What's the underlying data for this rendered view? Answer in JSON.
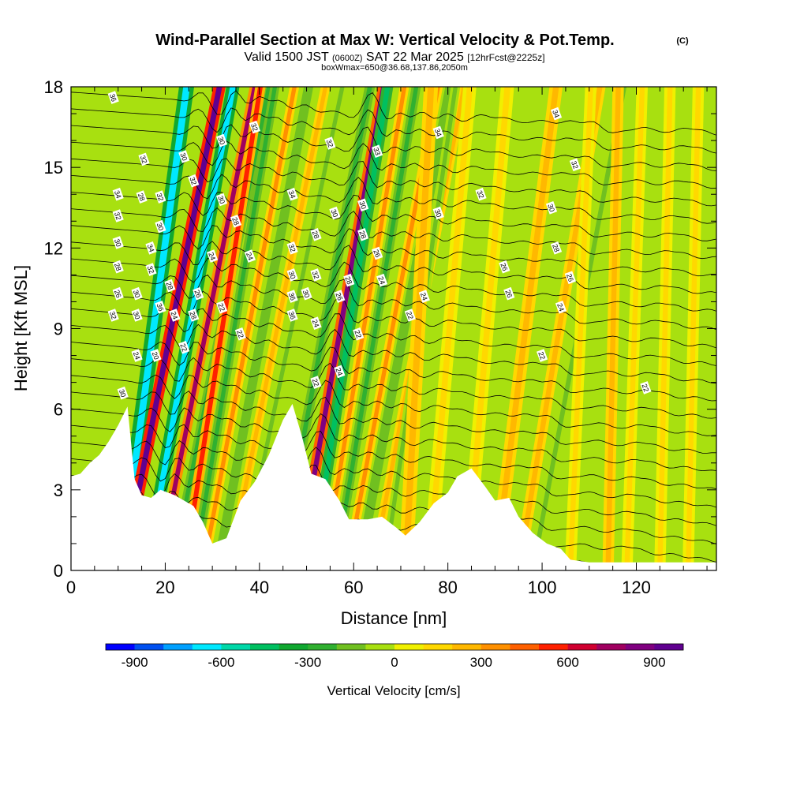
{
  "chart_data": {
    "type": "heatmap",
    "title": "Wind-Parallel Section at Max W: Vertical Velocity & Pot.Temp.",
    "title_mark": "(C)",
    "subtitle": {
      "prefix": "Valid 1500 JST",
      "utc": "(0600Z)",
      "date": "SAT 22 Mar 2025",
      "run": "[12hrFcst@2225z]"
    },
    "subtitle2": "boxWmax=650@36.68,137.86,2050m",
    "xlabel": "Distance [nm]",
    "ylabel": "Height [Kft MSL]",
    "xlim": [
      0,
      137
    ],
    "ylim": [
      0,
      18
    ],
    "xticks": [
      0,
      20,
      40,
      60,
      80,
      100,
      120
    ],
    "yticks": [
      0,
      3,
      6,
      9,
      12,
      15,
      18
    ],
    "colorbar": {
      "label": "Vertical Velocity [cm/s]",
      "range": [
        -1000,
        1000
      ],
      "ticks": [
        -900,
        -600,
        -300,
        0,
        300,
        600,
        900
      ],
      "colors": [
        "#0000ff",
        "#0050f0",
        "#00a0ff",
        "#00e8ff",
        "#00d8a8",
        "#00c060",
        "#10a830",
        "#30b030",
        "#70c020",
        "#a8e010",
        "#f0f000",
        "#ffd800",
        "#ffb800",
        "#ff9000",
        "#ff6000",
        "#ff2000",
        "#d00030",
        "#a00060",
        "#800080",
        "#600090"
      ]
    },
    "plumes": [
      {
        "x0": 10.5,
        "lean": 0.13,
        "half_width": 1.6,
        "w": -700
      },
      {
        "x0": 11.0,
        "lean": 0.19,
        "half_width": 1.3,
        "w": 950
      },
      {
        "x0": 16.0,
        "lean": 0.17,
        "half_width": 1.4,
        "w": -650
      },
      {
        "x0": 18.5,
        "lean": 0.19,
        "half_width": 1.1,
        "w": 700
      },
      {
        "x0": 21.5,
        "lean": 0.19,
        "half_width": 1.0,
        "w": -300
      },
      {
        "x0": 24.0,
        "lean": 0.15,
        "half_width": 1.1,
        "w": 500
      },
      {
        "x0": 26.0,
        "lean": 0.16,
        "half_width": 1.0,
        "w": -250
      },
      {
        "x0": 28.0,
        "lean": 0.18,
        "half_width": 1.0,
        "w": 350
      },
      {
        "x0": 31.0,
        "lean": 0.18,
        "half_width": 1.0,
        "w": -200
      },
      {
        "x0": 33.5,
        "lean": 0.19,
        "half_width": 1.0,
        "w": 250
      },
      {
        "x0": 36.0,
        "lean": 0.2,
        "half_width": 1.0,
        "w": -150
      },
      {
        "x0": 44.0,
        "lean": 0.18,
        "half_width": 1.1,
        "w": -250
      },
      {
        "x0": 48.0,
        "lean": 0.17,
        "half_width": 1.2,
        "w": 800
      },
      {
        "x0": 51.0,
        "lean": 0.15,
        "half_width": 1.2,
        "w": -450
      },
      {
        "x0": 53.5,
        "lean": 0.16,
        "half_width": 1.0,
        "w": 300
      },
      {
        "x0": 56.0,
        "lean": 0.16,
        "half_width": 1.0,
        "w": -250
      },
      {
        "x0": 58.5,
        "lean": 0.18,
        "half_width": 1.0,
        "w": 300
      },
      {
        "x0": 61.0,
        "lean": 0.18,
        "half_width": 1.0,
        "w": -200
      },
      {
        "x0": 64.0,
        "lean": 0.18,
        "half_width": 1.0,
        "w": 250
      },
      {
        "x0": 66.5,
        "lean": 0.14,
        "half_width": 1.0,
        "w": -150
      },
      {
        "x0": 71.0,
        "lean": 0.05,
        "half_width": 1.5,
        "w": 200
      },
      {
        "x0": 76.0,
        "lean": 0.08,
        "half_width": 1.4,
        "w": 150
      },
      {
        "x0": 84.0,
        "lean": 0.08,
        "half_width": 1.4,
        "w": 150
      },
      {
        "x0": 90.0,
        "lean": 0.12,
        "half_width": 1.4,
        "w": 200
      },
      {
        "x0": 95.0,
        "lean": 0.16,
        "half_width": 1.2,
        "w": 250
      },
      {
        "x0": 98.0,
        "lean": 0.18,
        "half_width": 1.1,
        "w": -150
      },
      {
        "x0": 106.0,
        "lean": 0.04,
        "half_width": 1.2,
        "w": 150
      },
      {
        "x0": 114.0,
        "lean": 0.02,
        "half_width": 1.2,
        "w": 200
      },
      {
        "x0": 118.0,
        "lean": 0.03,
        "half_width": 1.2,
        "w": 180
      },
      {
        "x0": 125.0,
        "lean": 0.02,
        "half_width": 1.2,
        "w": 150
      },
      {
        "x0": 131.0,
        "lean": 0.02,
        "half_width": 1.2,
        "w": 120
      }
    ],
    "terrain": [
      [
        0,
        3.5
      ],
      [
        2,
        3.6
      ],
      [
        4,
        4.0
      ],
      [
        6,
        4.3
      ],
      [
        8,
        4.8
      ],
      [
        10,
        5.4
      ],
      [
        12,
        6.1
      ],
      [
        13.5,
        3.4
      ],
      [
        15,
        2.8
      ],
      [
        17,
        2.7
      ],
      [
        19,
        3.0
      ],
      [
        22,
        2.8
      ],
      [
        26,
        2.4
      ],
      [
        28,
        1.8
      ],
      [
        30,
        1.0
      ],
      [
        33,
        1.2
      ],
      [
        36,
        2.6
      ],
      [
        39,
        3.3
      ],
      [
        42,
        4.3
      ],
      [
        45,
        5.6
      ],
      [
        47,
        6.2
      ],
      [
        49,
        5.0
      ],
      [
        51,
        3.6
      ],
      [
        54,
        3.4
      ],
      [
        57,
        2.6
      ],
      [
        59,
        1.9
      ],
      [
        63,
        1.9
      ],
      [
        66,
        2.0
      ],
      [
        69,
        1.6
      ],
      [
        71,
        1.3
      ],
      [
        74,
        1.8
      ],
      [
        77,
        2.5
      ],
      [
        80,
        2.9
      ],
      [
        82,
        3.5
      ],
      [
        85,
        3.8
      ],
      [
        88,
        3.1
      ],
      [
        90,
        2.6
      ],
      [
        93,
        2.7
      ],
      [
        95,
        2.0
      ],
      [
        98,
        1.4
      ],
      [
        101,
        1.0
      ],
      [
        104,
        0.8
      ],
      [
        106,
        0.4
      ],
      [
        110,
        0.3
      ],
      [
        137,
        0.3
      ]
    ],
    "theta_levels": [
      22,
      24,
      26,
      28,
      30,
      32,
      34,
      36
    ],
    "contour_labels": [
      {
        "x": 9,
        "y": 17.6,
        "text": "36"
      },
      {
        "x": 15.5,
        "y": 15.3,
        "text": "32"
      },
      {
        "x": 10,
        "y": 14.0,
        "text": "34"
      },
      {
        "x": 10,
        "y": 13.2,
        "text": "32"
      },
      {
        "x": 10,
        "y": 12.2,
        "text": "30"
      },
      {
        "x": 10,
        "y": 11.3,
        "text": "28"
      },
      {
        "x": 10,
        "y": 10.3,
        "text": "26"
      },
      {
        "x": 9,
        "y": 9.5,
        "text": "32"
      },
      {
        "x": 11,
        "y": 6.6,
        "text": "30"
      },
      {
        "x": 15,
        "y": 13.9,
        "text": "28"
      },
      {
        "x": 19,
        "y": 13.9,
        "text": "32"
      },
      {
        "x": 19,
        "y": 12.8,
        "text": "30"
      },
      {
        "x": 17,
        "y": 12.0,
        "text": "34"
      },
      {
        "x": 17,
        "y": 11.2,
        "text": "32"
      },
      {
        "x": 14,
        "y": 10.3,
        "text": "30"
      },
      {
        "x": 14,
        "y": 9.5,
        "text": "30"
      },
      {
        "x": 19,
        "y": 9.8,
        "text": "36"
      },
      {
        "x": 21,
        "y": 10.6,
        "text": "28"
      },
      {
        "x": 22,
        "y": 9.5,
        "text": "24"
      },
      {
        "x": 14,
        "y": 8.0,
        "text": "24"
      },
      {
        "x": 18,
        "y": 8.0,
        "text": "20"
      },
      {
        "x": 24,
        "y": 8.3,
        "text": "22"
      },
      {
        "x": 24,
        "y": 15.4,
        "text": "30"
      },
      {
        "x": 26,
        "y": 14.5,
        "text": "32"
      },
      {
        "x": 32,
        "y": 16.0,
        "text": "30"
      },
      {
        "x": 39,
        "y": 16.5,
        "text": "32"
      },
      {
        "x": 32,
        "y": 13.8,
        "text": "30"
      },
      {
        "x": 35,
        "y": 13.0,
        "text": "28"
      },
      {
        "x": 30,
        "y": 11.7,
        "text": "24"
      },
      {
        "x": 38,
        "y": 11.7,
        "text": "24"
      },
      {
        "x": 27,
        "y": 10.3,
        "text": "26"
      },
      {
        "x": 26,
        "y": 9.5,
        "text": "28"
      },
      {
        "x": 32,
        "y": 9.8,
        "text": "22"
      },
      {
        "x": 36,
        "y": 8.8,
        "text": "22"
      },
      {
        "x": 47,
        "y": 14.0,
        "text": "34"
      },
      {
        "x": 47,
        "y": 12.0,
        "text": "32"
      },
      {
        "x": 47,
        "y": 11.0,
        "text": "30"
      },
      {
        "x": 47,
        "y": 10.2,
        "text": "36"
      },
      {
        "x": 47,
        "y": 9.5,
        "text": "36"
      },
      {
        "x": 55,
        "y": 15.9,
        "text": "32"
      },
      {
        "x": 52,
        "y": 12.5,
        "text": "28"
      },
      {
        "x": 52,
        "y": 11.0,
        "text": "32"
      },
      {
        "x": 50,
        "y": 10.3,
        "text": "30"
      },
      {
        "x": 52,
        "y": 9.2,
        "text": "24"
      },
      {
        "x": 52,
        "y": 7.0,
        "text": "22"
      },
      {
        "x": 56,
        "y": 13.3,
        "text": "30"
      },
      {
        "x": 62,
        "y": 13.6,
        "text": "30"
      },
      {
        "x": 62,
        "y": 12.5,
        "text": "28"
      },
      {
        "x": 59,
        "y": 10.8,
        "text": "28"
      },
      {
        "x": 57,
        "y": 10.2,
        "text": "26"
      },
      {
        "x": 65,
        "y": 11.8,
        "text": "26"
      },
      {
        "x": 66,
        "y": 10.8,
        "text": "24"
      },
      {
        "x": 61,
        "y": 8.8,
        "text": "22"
      },
      {
        "x": 57,
        "y": 7.4,
        "text": "24"
      },
      {
        "x": 65,
        "y": 15.6,
        "text": "33"
      },
      {
        "x": 78,
        "y": 16.3,
        "text": "34"
      },
      {
        "x": 78,
        "y": 13.3,
        "text": "30"
      },
      {
        "x": 72,
        "y": 9.5,
        "text": "22"
      },
      {
        "x": 75,
        "y": 10.2,
        "text": "24"
      },
      {
        "x": 87,
        "y": 14.0,
        "text": "32"
      },
      {
        "x": 103,
        "y": 17.0,
        "text": "34"
      },
      {
        "x": 107,
        "y": 15.1,
        "text": "32"
      },
      {
        "x": 102,
        "y": 13.5,
        "text": "30"
      },
      {
        "x": 103,
        "y": 12.0,
        "text": "28"
      },
      {
        "x": 92,
        "y": 11.3,
        "text": "26"
      },
      {
        "x": 106,
        "y": 10.9,
        "text": "26"
      },
      {
        "x": 93,
        "y": 10.3,
        "text": "26"
      },
      {
        "x": 104,
        "y": 9.8,
        "text": "24"
      },
      {
        "x": 100,
        "y": 8.0,
        "text": "22"
      },
      {
        "x": 122,
        "y": 6.8,
        "text": "22"
      }
    ]
  }
}
